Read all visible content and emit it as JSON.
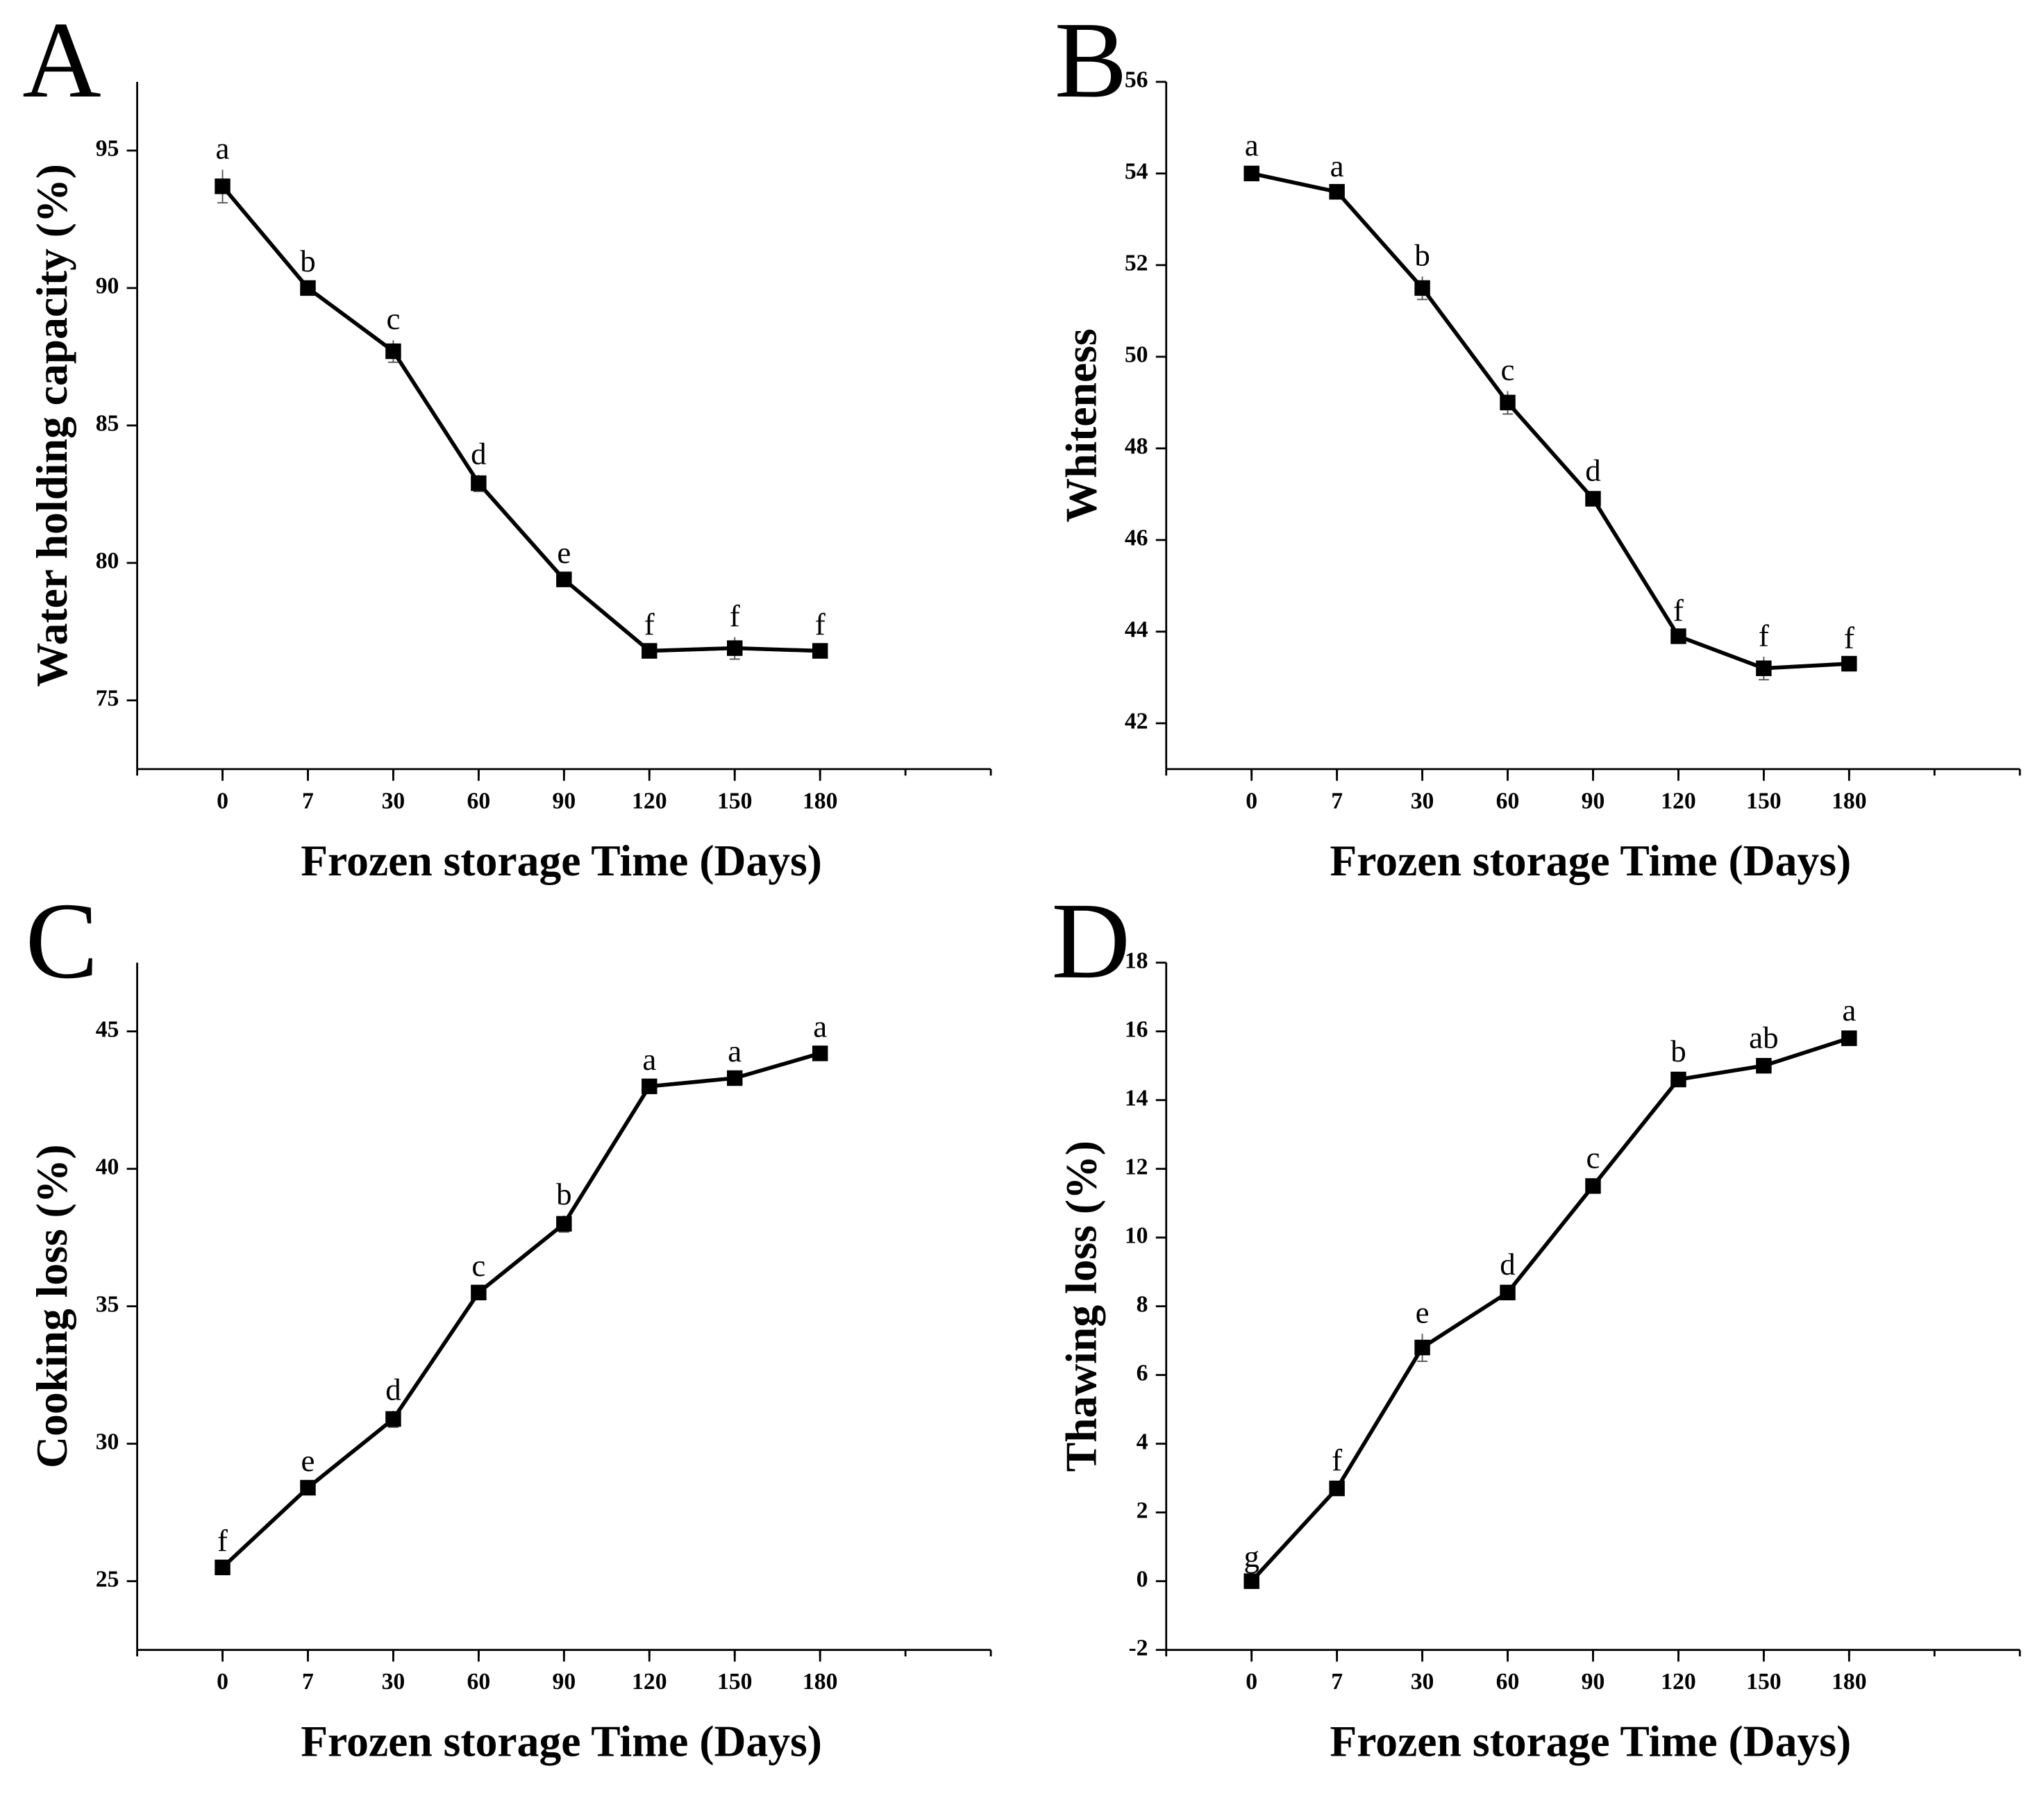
{
  "chart_data": [
    {
      "type": "line",
      "panel": "A",
      "ylabel": "Water holding capacity (%)",
      "xlabel": "Frozen storage Time (Days)",
      "categories": [
        "0",
        "7",
        "30",
        "60",
        "90",
        "120",
        "150",
        "180"
      ],
      "values": [
        93.7,
        90.0,
        87.7,
        82.9,
        79.4,
        76.8,
        76.9,
        76.8
      ],
      "errors": [
        0.6,
        0.2,
        0.4,
        0.3,
        0.2,
        0.2,
        0.4,
        0.2
      ],
      "point_labels": [
        "a",
        "b",
        "c",
        "d",
        "e",
        "f",
        "f",
        "f"
      ],
      "ylim": [
        72.5,
        97.5
      ],
      "yticks": [
        75,
        80,
        85,
        90,
        95
      ],
      "color": "#000000"
    },
    {
      "type": "line",
      "panel": "B",
      "ylabel": "Whiteness",
      "xlabel": "Frozen storage Time (Days)",
      "categories": [
        "0",
        "7",
        "30",
        "60",
        "90",
        "120",
        "150",
        "180"
      ],
      "values": [
        54.0,
        53.6,
        51.5,
        49.0,
        46.9,
        43.9,
        43.2,
        43.3
      ],
      "errors": [
        0.15,
        0.1,
        0.25,
        0.25,
        0.15,
        0.1,
        0.25,
        0.1
      ],
      "point_labels": [
        "a",
        "a",
        "b",
        "c",
        "d",
        "f",
        "f",
        "f"
      ],
      "ylim": [
        41,
        56
      ],
      "yticks": [
        42,
        44,
        46,
        48,
        50,
        52,
        54,
        56
      ],
      "color": "#000000"
    },
    {
      "type": "line",
      "panel": "C",
      "ylabel": "Cooking loss (%)",
      "xlabel": "Frozen storage Time (Days)",
      "categories": [
        "0",
        "7",
        "30",
        "60",
        "90",
        "120",
        "150",
        "180"
      ],
      "values": [
        25.5,
        28.4,
        30.9,
        35.5,
        38.0,
        43.0,
        43.3,
        44.2
      ],
      "errors": [
        0.2,
        0.2,
        0.3,
        0.2,
        0.3,
        0.2,
        0.2,
        0.2
      ],
      "point_labels": [
        "f",
        "e",
        "d",
        "c",
        "b",
        "a",
        "a",
        "a"
      ],
      "ylim": [
        22.5,
        47.5
      ],
      "yticks": [
        25,
        30,
        35,
        40,
        45
      ],
      "color": "#000000"
    },
    {
      "type": "line",
      "panel": "D",
      "ylabel": "Thawing loss (%)",
      "xlabel": "Frozen storage Time (Days)",
      "categories": [
        "0",
        "7",
        "30",
        "60",
        "90",
        "120",
        "150",
        "180"
      ],
      "values": [
        0.0,
        2.7,
        6.8,
        8.4,
        11.5,
        14.6,
        15.0,
        15.8
      ],
      "errors": [
        0.1,
        0.2,
        0.4,
        0.2,
        0.2,
        0.2,
        0.2,
        0.2
      ],
      "point_labels": [
        "g",
        "f",
        "e",
        "d",
        "c",
        "b",
        "ab",
        "a"
      ],
      "ylim": [
        -2,
        18
      ],
      "yticks": [
        -2,
        0,
        2,
        4,
        6,
        8,
        10,
        12,
        14,
        16,
        18
      ],
      "color": "#000000"
    }
  ]
}
